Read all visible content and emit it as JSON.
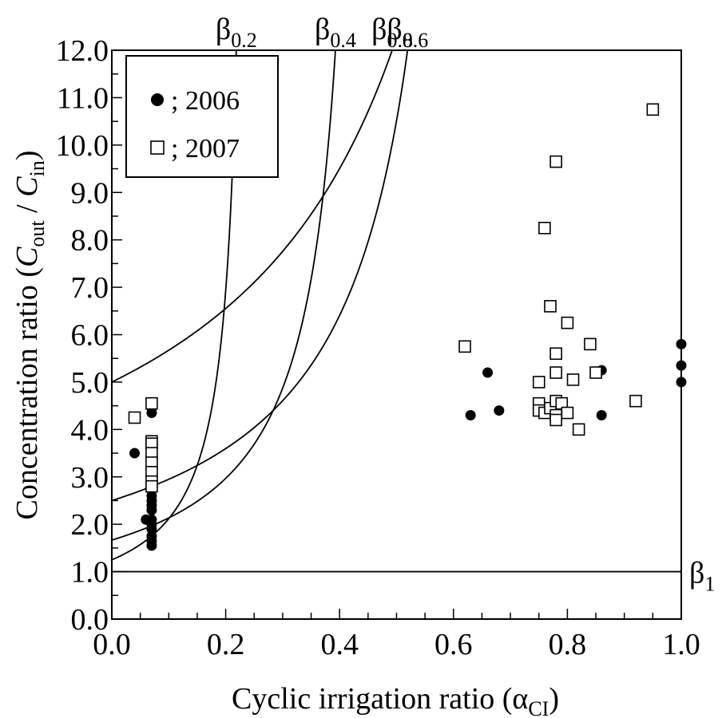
{
  "chart_data": {
    "type": "scatter",
    "xlabel": {
      "main": "Cyclic irrigation ratio (",
      "greek": "α",
      "sub": "CI",
      "close": ")"
    },
    "ylabel": {
      "main": "Concentration ratio  (",
      "num": "C",
      "num_sub": "out",
      "slash": " / ",
      "den": "C",
      "den_sub": "in",
      "close": ")"
    },
    "xlim": [
      0.0,
      1.0
    ],
    "ylim": [
      0.0,
      12.0
    ],
    "xticks": [
      "0.0",
      "0.2",
      "0.4",
      "0.6",
      "0.8",
      "1.0"
    ],
    "yticks": [
      "0.0",
      "1.0",
      "2.0",
      "3.0",
      "4.0",
      "5.0",
      "6.0",
      "7.0",
      "8.0",
      "9.0",
      "10.0",
      "11.0",
      "12.0"
    ],
    "grid": false,
    "legend_position": "top-left",
    "series": [
      {
        "name": "; 2006",
        "marker": "filled-circle",
        "color": "#000000",
        "points": [
          [
            0.04,
            3.5
          ],
          [
            0.06,
            2.1
          ],
          [
            0.07,
            1.55
          ],
          [
            0.07,
            1.65
          ],
          [
            0.07,
            1.75
          ],
          [
            0.07,
            1.9
          ],
          [
            0.07,
            2.0
          ],
          [
            0.07,
            2.1
          ],
          [
            0.07,
            2.3
          ],
          [
            0.07,
            2.4
          ],
          [
            0.07,
            2.5
          ],
          [
            0.07,
            2.6
          ],
          [
            0.07,
            2.8
          ],
          [
            0.07,
            3.0
          ],
          [
            0.07,
            3.2
          ],
          [
            0.07,
            4.35
          ],
          [
            0.07,
            4.45
          ],
          [
            0.63,
            4.3
          ],
          [
            0.66,
            5.2
          ],
          [
            0.68,
            4.4
          ],
          [
            0.86,
            5.25
          ],
          [
            0.86,
            4.3
          ],
          [
            1.0,
            5.8
          ],
          [
            1.0,
            5.35
          ],
          [
            1.0,
            5.0
          ]
        ]
      },
      {
        "name": "; 2007",
        "marker": "open-square",
        "color": "#000000",
        "points": [
          [
            0.04,
            4.25
          ],
          [
            0.07,
            4.55
          ],
          [
            0.07,
            3.75
          ],
          [
            0.07,
            3.7
          ],
          [
            0.07,
            3.5
          ],
          [
            0.07,
            3.3
          ],
          [
            0.07,
            3.1
          ],
          [
            0.07,
            2.9
          ],
          [
            0.07,
            2.8
          ],
          [
            0.62,
            5.75
          ],
          [
            0.75,
            5.0
          ],
          [
            0.75,
            4.55
          ],
          [
            0.75,
            4.4
          ],
          [
            0.76,
            8.25
          ],
          [
            0.76,
            4.35
          ],
          [
            0.77,
            6.6
          ],
          [
            0.77,
            4.45
          ],
          [
            0.78,
            9.65
          ],
          [
            0.78,
            5.6
          ],
          [
            0.78,
            5.2
          ],
          [
            0.78,
            4.6
          ],
          [
            0.78,
            4.3
          ],
          [
            0.78,
            4.2
          ],
          [
            0.79,
            4.55
          ],
          [
            0.8,
            6.25
          ],
          [
            0.8,
            4.35
          ],
          [
            0.81,
            5.05
          ],
          [
            0.82,
            4.0
          ],
          [
            0.84,
            5.8
          ],
          [
            0.85,
            5.2
          ],
          [
            0.92,
            4.6
          ],
          [
            0.95,
            10.75
          ]
        ]
      }
    ],
    "curves": [
      {
        "label": "β",
        "sub": "0.2",
        "beta": 0.2
      },
      {
        "label": "β",
        "sub": "0.4",
        "beta": 0.4
      },
      {
        "label": "β",
        "sub": "0.6",
        "beta": 0.6
      },
      {
        "label": "β",
        "sub": "0.8",
        "beta": 0.8
      },
      {
        "label": "β",
        "sub": "1",
        "beta": 1.0
      }
    ]
  }
}
